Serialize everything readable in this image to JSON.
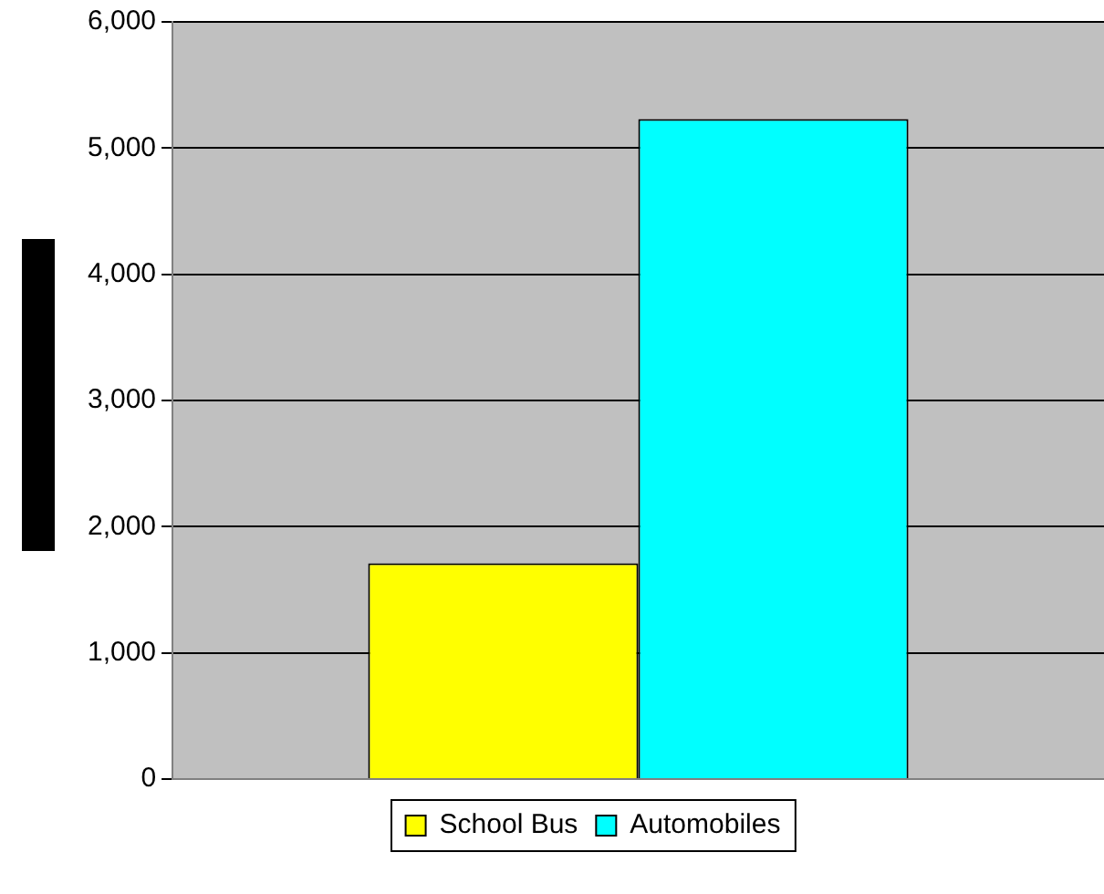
{
  "chart_data": {
    "type": "bar",
    "categories": [
      null
    ],
    "series": [
      {
        "name": "School Bus",
        "color": "#ffff00",
        "values": [
          1710
        ]
      },
      {
        "name": "Automobiles",
        "color": "#00ffff",
        "values": [
          5230
        ]
      }
    ],
    "ylim": [
      0,
      6000
    ],
    "yticks": [
      0,
      {
        "value": 1000,
        "label": "1,000"
      },
      {
        "value": 2000,
        "label": "2,000"
      },
      {
        "value": 3000,
        "label": "3,000"
      },
      {
        "value": 4000,
        "label": "4,000"
      },
      {
        "value": 5000,
        "label": "5,000"
      },
      {
        "value": 6000,
        "label": "6,000"
      }
    ],
    "grid": "y",
    "legend": "bottom"
  }
}
